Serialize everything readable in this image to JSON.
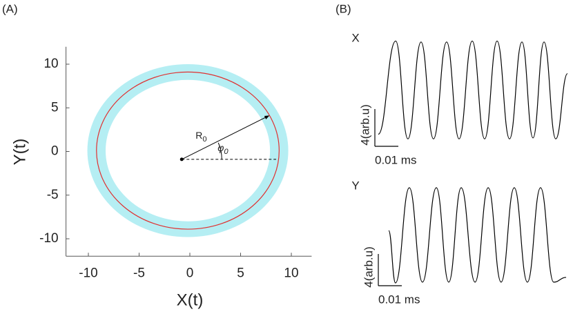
{
  "chart_data": [
    {
      "type": "orbit",
      "panel_label": "(A)",
      "xlabel": "X(t)",
      "ylabel": "Y(t)",
      "xlim": [
        -12,
        12
      ],
      "ylim": [
        -12,
        12
      ],
      "xticks": [
        -10,
        -5,
        0,
        5,
        10
      ],
      "yticks": [
        -10,
        -5,
        0,
        5,
        10
      ],
      "center": [
        -0.2,
        0.1
      ],
      "radius": 9,
      "band_width": 1.8,
      "color": "#e03030",
      "band_color": "#b5eef3",
      "origin": [
        -0.8,
        -0.9
      ],
      "arrow_tip": [
        7.8,
        4.1
      ],
      "dashed_end": [
        8.5,
        -0.9
      ],
      "radius_label": {
        "text": "R",
        "sub": "0"
      },
      "angle_label": {
        "text": "φ",
        "sub": "0"
      }
    },
    {
      "type": "line",
      "panel_label": "(B)",
      "title": "X",
      "color": "#000000",
      "x": [
        0,
        0.0074,
        0.0126,
        0.0182,
        0.0235,
        0.0291,
        0.0344,
        0.04,
        0.0453,
        0.0506,
        0.0559,
        0.0612,
        0.0659,
        0.0706,
        0.0756,
        0.0806
      ],
      "values": [
        -4.7,
        5.3,
        -5.2,
        5.2,
        -5.2,
        5.2,
        -5.2,
        5.3,
        -5.2,
        5.3,
        -5.2,
        5.2,
        -5.1,
        5.2,
        -5.2,
        1.8
      ],
      "scale_bar": {
        "x": 0.01,
        "x_label": "0.01 ms",
        "y": 4,
        "y_label": "4(arb.u)"
      }
    },
    {
      "type": "line",
      "title": "Y",
      "color": "#000000",
      "x": [
        0,
        0.0029,
        0.0088,
        0.0144,
        0.0203,
        0.0256,
        0.0309,
        0.0368,
        0.0424,
        0.0479,
        0.0535,
        0.0591,
        0.0647,
        0.0703,
        0.0756
      ],
      "values": [
        0.6,
        -6.0,
        6.0,
        -5.9,
        6.0,
        -5.9,
        6.0,
        -5.9,
        6.0,
        -5.9,
        6.0,
        -5.9,
        6.0,
        -5.9,
        -5.3
      ],
      "scale_bar": {
        "x": 0.01,
        "x_label": "0.01 ms",
        "y": 4,
        "y_label": "4(arb.u)"
      }
    }
  ]
}
